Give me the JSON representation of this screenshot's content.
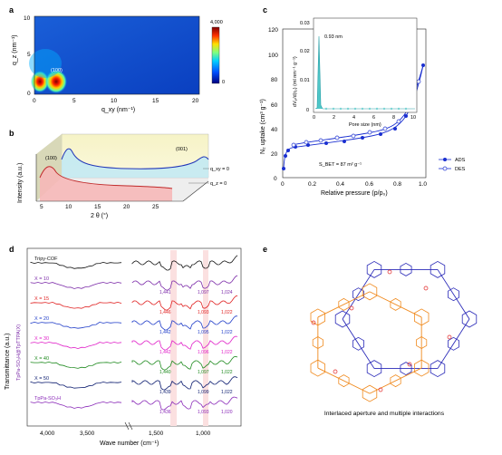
{
  "panel_a": {
    "label": "a",
    "y_axis_label": "q_z (nm⁻¹)",
    "x_axis_label": "q_xy (nm⁻¹)",
    "y_ticks": [
      "10",
      "5",
      "0"
    ],
    "x_ticks": [
      "0",
      "5",
      "10",
      "15",
      "20"
    ],
    "peak_label": "(100)",
    "colorbar_max": "4,000",
    "colorbar_min": "0",
    "colors": [
      "#00007f",
      "#0050ff",
      "#00c8ff",
      "#7fff7f",
      "#ffe000",
      "#ff4000",
      "#7f0000"
    ]
  },
  "panel_b": {
    "label": "b",
    "y_axis_label": "Intensity (a.u.)",
    "x_axis_label": "2 θ (°)",
    "x_ticks": [
      "5",
      "10",
      "15",
      "20",
      "25"
    ],
    "peak_left": "(100)",
    "peak_right": "(001)",
    "legend_qxy": "q_xy = 0",
    "legend_qz": "q_z = 0"
  },
  "panel_c": {
    "label": "c",
    "y_axis_label": "N₂ uptake (cm³ g⁻¹)",
    "x_axis_label": "Relative pressure (p/p₀)",
    "y_ticks": [
      "0",
      "20",
      "40",
      "60",
      "80",
      "100",
      "120"
    ],
    "x_ticks": [
      "0",
      "0.2",
      "0.4",
      "0.6",
      "0.8",
      "1.0"
    ],
    "bet": "S_BET = 87 m² g⁻¹",
    "legend_ads": "ADS",
    "legend_des": "DES",
    "inset": {
      "y_axis_label": "dVₚ/d(rₚ) (ml nm⁻¹ g⁻¹)",
      "x_axis_label": "Pore size (nm)",
      "y_ticks": [
        "0",
        "0.01",
        "0.02",
        "0.03"
      ],
      "x_ticks": [
        "0",
        "2",
        "4",
        "6",
        "8",
        "10"
      ],
      "peak_label": "0.93 nm"
    }
  },
  "panel_d": {
    "label": "d",
    "y_axis_label": "Transmittance (a.u.)",
    "side_label": "TpPa-SO₃H@TpTTPA(X)",
    "x_axis_label": "Wave number (cm⁻¹)",
    "x_ticks": [
      "4,000",
      "3,500",
      "1,500",
      "1,000"
    ],
    "traces": [
      {
        "name": "Tripy-COF",
        "color": "#111111",
        "marks": []
      },
      {
        "name": "X = 10",
        "color": "#7b2aa8",
        "marks": [
          "1,441",
          "1,097",
          "1,024"
        ]
      },
      {
        "name": "X = 15",
        "color": "#e02020",
        "marks": [
          "1,446",
          "1,093",
          "1,022"
        ]
      },
      {
        "name": "X = 20",
        "color": "#1f3cc8",
        "marks": [
          "1,442",
          "1,095",
          "1,022"
        ]
      },
      {
        "name": "X = 30",
        "color": "#e020c8",
        "marks": [
          "1,442",
          "1,096",
          "1,022"
        ]
      },
      {
        "name": "X = 40",
        "color": "#1e8a1e",
        "marks": [
          "1,440",
          "1,097",
          "1,022"
        ]
      },
      {
        "name": "X = 50",
        "color": "#0a1a6e",
        "marks": [
          "1,439",
          "1,099",
          "1,022"
        ]
      },
      {
        "name": "TpPa-SO₃H",
        "color": "#8a2ab8",
        "marks": [
          "1,436",
          "1,093",
          "1,020"
        ]
      }
    ]
  },
  "panel_e": {
    "label": "e",
    "caption": "Interlaced aperture and multiple interactions",
    "colors": {
      "framework_a": "#f08a1e",
      "framework_b": "#2a2ab8",
      "heteroatom": "#e02020"
    }
  }
}
